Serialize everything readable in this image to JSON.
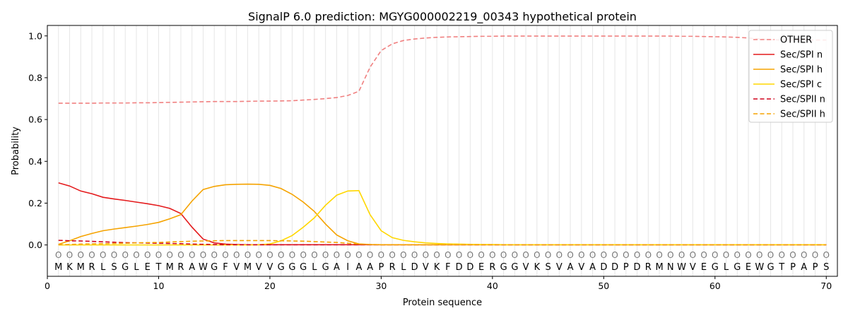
{
  "chart_data": {
    "type": "line",
    "title": "SignalP 6.0 prediction: MGYG000002219_00343 hypothetical protein",
    "xlabel": "Protein sequence",
    "ylabel": "Probability",
    "xlim": [
      0,
      71
    ],
    "ylim": [
      -0.15,
      1.05
    ],
    "xticks": [
      0,
      10,
      20,
      30,
      40,
      50,
      60,
      70
    ],
    "yticks": [
      0.0,
      0.2,
      0.4,
      0.6,
      0.8,
      1.0
    ],
    "ytick_labels": [
      "0.0",
      "0.2",
      "0.4",
      "0.6",
      "0.8",
      "1.0"
    ],
    "legend_position": "upper right",
    "sequence": [
      "M",
      "K",
      "M",
      "R",
      "L",
      "S",
      "G",
      "L",
      "E",
      "T",
      "M",
      "R",
      "A",
      "W",
      "G",
      "F",
      "V",
      "M",
      "V",
      "V",
      "G",
      "G",
      "G",
      "L",
      "G",
      "A",
      "I",
      "A",
      "A",
      "P",
      "R",
      "L",
      "D",
      "V",
      "K",
      "F",
      "D",
      "D",
      "E",
      "R",
      "G",
      "G",
      "V",
      "K",
      "S",
      "V",
      "A",
      "V",
      "A",
      "D",
      "D",
      "P",
      "D",
      "R",
      "M",
      "N",
      "W",
      "V",
      "E",
      "G",
      "L",
      "G",
      "E",
      "W",
      "G",
      "T",
      "P",
      "A",
      "P",
      "S"
    ],
    "sequence_marker": "O",
    "series": [
      {
        "name": "OTHER",
        "color": "#f08080",
        "dash": true,
        "values": [
          0.678,
          0.678,
          0.678,
          0.678,
          0.679,
          0.679,
          0.679,
          0.68,
          0.68,
          0.681,
          0.682,
          0.683,
          0.684,
          0.685,
          0.686,
          0.686,
          0.686,
          0.687,
          0.688,
          0.688,
          0.689,
          0.69,
          0.693,
          0.696,
          0.7,
          0.705,
          0.715,
          0.735,
          0.85,
          0.93,
          0.962,
          0.978,
          0.985,
          0.99,
          0.993,
          0.995,
          0.996,
          0.997,
          0.998,
          0.998,
          0.999,
          0.999,
          0.999,
          0.999,
          0.999,
          0.999,
          0.999,
          0.999,
          0.999,
          0.999,
          0.999,
          0.999,
          0.999,
          0.999,
          0.999,
          0.999,
          0.998,
          0.998,
          0.997,
          0.996,
          0.995,
          0.993,
          0.99,
          0.985,
          0.982,
          0.98,
          0.98,
          0.98,
          0.98,
          0.98
        ]
      },
      {
        "name": "Sec/SPI n",
        "color": "#e41a1c",
        "dash": false,
        "values": [
          0.297,
          0.282,
          0.258,
          0.245,
          0.228,
          0.22,
          0.213,
          0.205,
          0.197,
          0.188,
          0.175,
          0.15,
          0.085,
          0.028,
          0.01,
          0.004,
          0.002,
          0.001,
          0.001,
          0.001,
          0.001,
          0.001,
          0.001,
          0.001,
          0.001,
          0.001,
          0.001,
          0.001,
          0.001,
          0.001,
          0.001,
          0.001,
          0.001,
          0.001,
          0.001,
          0.001,
          0.001,
          0.001,
          0.001,
          0.001,
          0.001,
          0.001,
          0.001,
          0.001,
          0.001,
          0.001,
          0.001,
          0.001,
          0.001,
          0.001,
          0.001,
          0.001,
          0.001,
          0.001,
          0.001,
          0.001,
          0.001,
          0.001,
          0.001,
          0.001,
          0.001,
          0.001,
          0.001,
          0.001,
          0.001,
          0.001,
          0.001,
          0.001,
          0.001,
          0.001
        ]
      },
      {
        "name": "Sec/SPI h",
        "color": "#f5a300",
        "dash": false,
        "values": [
          0.003,
          0.02,
          0.04,
          0.055,
          0.068,
          0.076,
          0.083,
          0.09,
          0.098,
          0.108,
          0.125,
          0.145,
          0.21,
          0.265,
          0.28,
          0.288,
          0.29,
          0.291,
          0.29,
          0.285,
          0.27,
          0.242,
          0.205,
          0.16,
          0.1,
          0.048,
          0.02,
          0.005,
          0.002,
          0.001,
          0.001,
          0.001,
          0.001,
          0.001,
          0.001,
          0.001,
          0.001,
          0.001,
          0.001,
          0.001,
          0.001,
          0.001,
          0.001,
          0.001,
          0.001,
          0.001,
          0.001,
          0.001,
          0.001,
          0.001,
          0.001,
          0.001,
          0.001,
          0.001,
          0.001,
          0.001,
          0.001,
          0.001,
          0.001,
          0.001,
          0.001,
          0.001,
          0.001,
          0.001,
          0.001,
          0.001,
          0.001,
          0.001,
          0.001,
          0.001
        ]
      },
      {
        "name": "Sec/SPI c",
        "color": "#ffd700",
        "dash": false,
        "values": [
          0.0,
          0.0,
          0.0,
          0.0,
          0.0,
          0.0,
          0.0,
          0.0,
          0.0,
          0.0,
          0.0,
          0.0,
          0.0,
          0.0,
          0.0,
          0.0,
          0.0,
          0.0,
          0.001,
          0.005,
          0.02,
          0.045,
          0.085,
          0.13,
          0.19,
          0.238,
          0.258,
          0.26,
          0.145,
          0.068,
          0.035,
          0.022,
          0.015,
          0.01,
          0.007,
          0.005,
          0.004,
          0.003,
          0.002,
          0.002,
          0.001,
          0.001,
          0.001,
          0.001,
          0.001,
          0.001,
          0.001,
          0.001,
          0.001,
          0.001,
          0.001,
          0.001,
          0.001,
          0.001,
          0.001,
          0.001,
          0.001,
          0.001,
          0.001,
          0.001,
          0.001,
          0.001,
          0.001,
          0.001,
          0.001,
          0.001,
          0.001,
          0.001,
          0.001,
          0.001
        ]
      },
      {
        "name": "Sec/SPII n",
        "color": "#d0021b",
        "dash": true,
        "values": [
          0.022,
          0.02,
          0.019,
          0.017,
          0.015,
          0.013,
          0.011,
          0.01,
          0.009,
          0.008,
          0.007,
          0.006,
          0.004,
          0.003,
          0.002,
          0.001,
          0.001,
          0.001,
          0.001,
          0.001,
          0.001,
          0.001,
          0.001,
          0.001,
          0.001,
          0.001,
          0.001,
          0.001,
          0.001,
          0.001,
          0.001,
          0.001,
          0.001,
          0.001,
          0.001,
          0.001,
          0.001,
          0.001,
          0.001,
          0.001,
          0.001,
          0.001,
          0.001,
          0.001,
          0.001,
          0.001,
          0.001,
          0.001,
          0.001,
          0.001,
          0.001,
          0.001,
          0.001,
          0.001,
          0.001,
          0.001,
          0.001,
          0.001,
          0.001,
          0.001,
          0.001,
          0.001,
          0.001,
          0.001,
          0.001,
          0.001,
          0.001,
          0.001,
          0.001,
          0.001
        ]
      },
      {
        "name": "Sec/SPII h",
        "color": "#f5a300",
        "dash": true,
        "values": [
          0.001,
          0.002,
          0.004,
          0.005,
          0.006,
          0.007,
          0.008,
          0.01,
          0.011,
          0.012,
          0.014,
          0.016,
          0.018,
          0.019,
          0.02,
          0.021,
          0.021,
          0.021,
          0.021,
          0.021,
          0.02,
          0.019,
          0.018,
          0.016,
          0.014,
          0.012,
          0.008,
          0.004,
          0.002,
          0.001,
          0.001,
          0.001,
          0.001,
          0.001,
          0.001,
          0.001,
          0.001,
          0.001,
          0.001,
          0.001,
          0.001,
          0.001,
          0.001,
          0.001,
          0.001,
          0.001,
          0.001,
          0.001,
          0.001,
          0.001,
          0.001,
          0.001,
          0.001,
          0.001,
          0.001,
          0.001,
          0.001,
          0.001,
          0.001,
          0.001,
          0.001,
          0.001,
          0.001,
          0.001,
          0.001,
          0.001,
          0.001,
          0.001,
          0.001,
          0.001
        ]
      }
    ]
  }
}
